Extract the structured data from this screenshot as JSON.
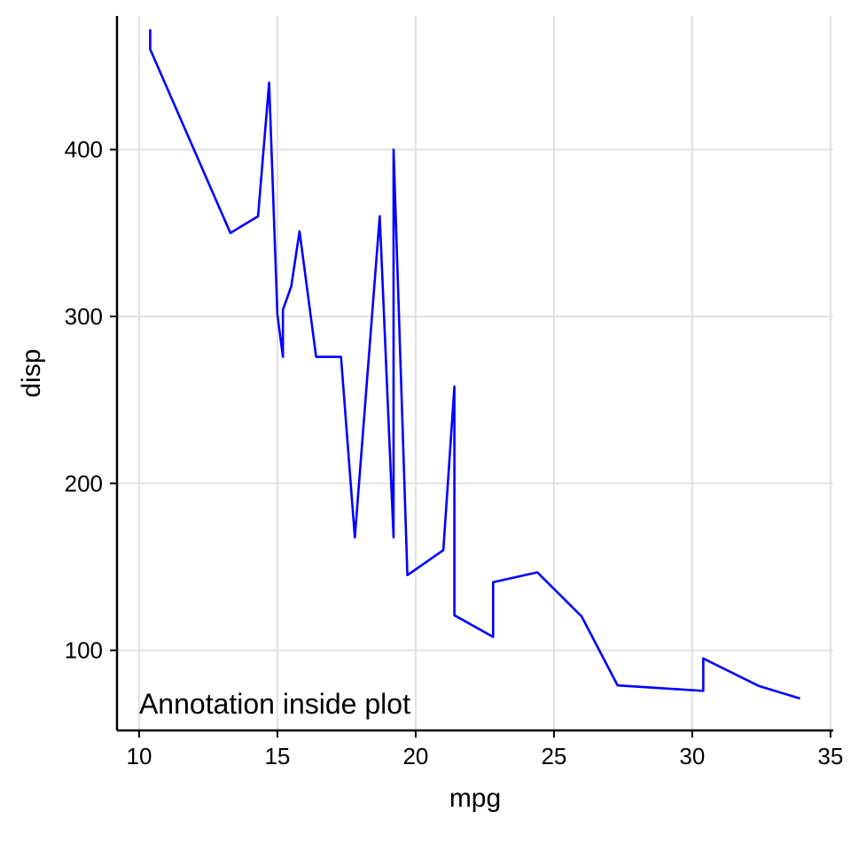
{
  "chart_data": {
    "type": "line",
    "title": "",
    "xlabel": "mpg",
    "ylabel": "disp",
    "xlim": [
      9.2,
      35.1
    ],
    "ylim": [
      52,
      480
    ],
    "xticks": [
      10,
      15,
      20,
      25,
      30,
      35
    ],
    "xtick_labels": [
      "10",
      "15",
      "20",
      "25",
      "30",
      "35"
    ],
    "yticks": [
      100,
      200,
      300,
      400
    ],
    "ytick_labels": [
      "100",
      "200",
      "300",
      "400"
    ],
    "grid": true,
    "legend": "none",
    "series": [
      {
        "color": "#0000ff",
        "points": [
          [
            10.4,
            472.0
          ],
          [
            10.4,
            460.0
          ],
          [
            13.3,
            350.0
          ],
          [
            14.3,
            360.0
          ],
          [
            14.7,
            440.0
          ],
          [
            15.0,
            301.0
          ],
          [
            15.2,
            275.8
          ],
          [
            15.2,
            304.0
          ],
          [
            15.5,
            318.0
          ],
          [
            15.8,
            351.0
          ],
          [
            16.4,
            275.8
          ],
          [
            17.3,
            275.8
          ],
          [
            17.8,
            167.6
          ],
          [
            18.7,
            360.0
          ],
          [
            19.2,
            167.6
          ],
          [
            19.2,
            400.0
          ],
          [
            19.7,
            145.0
          ],
          [
            21.0,
            160.0
          ],
          [
            21.4,
            258.0
          ],
          [
            21.4,
            121.0
          ],
          [
            22.8,
            108.0
          ],
          [
            22.8,
            140.8
          ],
          [
            24.4,
            146.7
          ],
          [
            26.0,
            120.3
          ],
          [
            27.3,
            79.0
          ],
          [
            30.4,
            75.7
          ],
          [
            30.4,
            95.1
          ],
          [
            32.4,
            78.7
          ],
          [
            33.9,
            71.1
          ]
        ]
      }
    ],
    "annotations": [
      {
        "text": "Annotation inside plot",
        "x": 10,
        "y": 68
      }
    ]
  },
  "colors": {
    "line": "#0000ff",
    "grid": "#e0e0e0",
    "axis": "#000000",
    "background": "#ffffff"
  }
}
